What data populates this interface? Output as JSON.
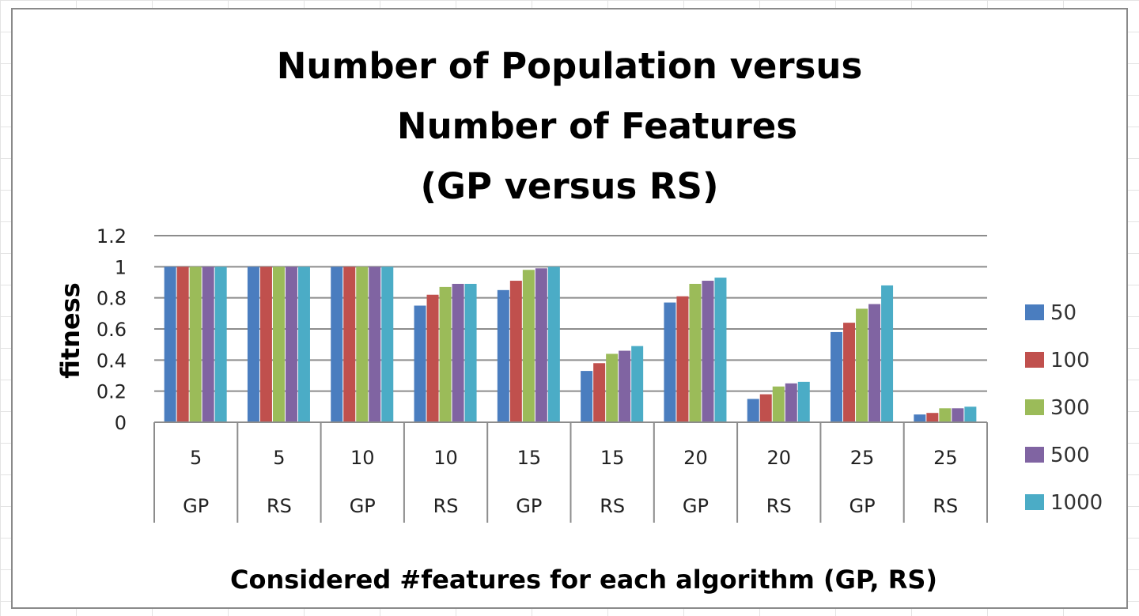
{
  "chart_data": {
    "type": "bar",
    "title_lines": [
      "Number of Population versus",
      "Number of Features",
      "(GP versus RS)"
    ],
    "xlabel": "Considered #features for each algorithm (GP, RS)",
    "ylabel": "fitness",
    "ylim": [
      0,
      1.2
    ],
    "yticks": [
      "0",
      "0.2",
      "0.4",
      "0.6",
      "0.8",
      "1",
      "1.2"
    ],
    "categories": [
      {
        "features": "5",
        "algorithm": "GP"
      },
      {
        "features": "5",
        "algorithm": "RS"
      },
      {
        "features": "10",
        "algorithm": "GP"
      },
      {
        "features": "10",
        "algorithm": "RS"
      },
      {
        "features": "15",
        "algorithm": "GP"
      },
      {
        "features": "15",
        "algorithm": "RS"
      },
      {
        "features": "20",
        "algorithm": "GP"
      },
      {
        "features": "20",
        "algorithm": "RS"
      },
      {
        "features": "25",
        "algorithm": "GP"
      },
      {
        "features": "25",
        "algorithm": "RS"
      }
    ],
    "series": [
      {
        "name": "50",
        "color": "#4a7dbf",
        "values": [
          1,
          1,
          1,
          0.75,
          0.85,
          0.33,
          0.77,
          0.15,
          0.58,
          0.05
        ]
      },
      {
        "name": "100",
        "color": "#c0504d",
        "values": [
          1,
          1,
          1,
          0.82,
          0.91,
          0.38,
          0.81,
          0.18,
          0.64,
          0.06
        ]
      },
      {
        "name": "300",
        "color": "#9bbb59",
        "values": [
          1,
          1,
          1,
          0.87,
          0.98,
          0.44,
          0.89,
          0.23,
          0.73,
          0.09
        ]
      },
      {
        "name": "500",
        "color": "#8064a2",
        "values": [
          1,
          1,
          1,
          0.89,
          0.99,
          0.46,
          0.91,
          0.25,
          0.76,
          0.09
        ]
      },
      {
        "name": "1000",
        "color": "#4bacc6",
        "values": [
          1,
          1,
          1,
          0.89,
          1,
          0.49,
          0.93,
          0.26,
          0.88,
          0.1
        ]
      }
    ],
    "grid": true,
    "legend": "right"
  }
}
